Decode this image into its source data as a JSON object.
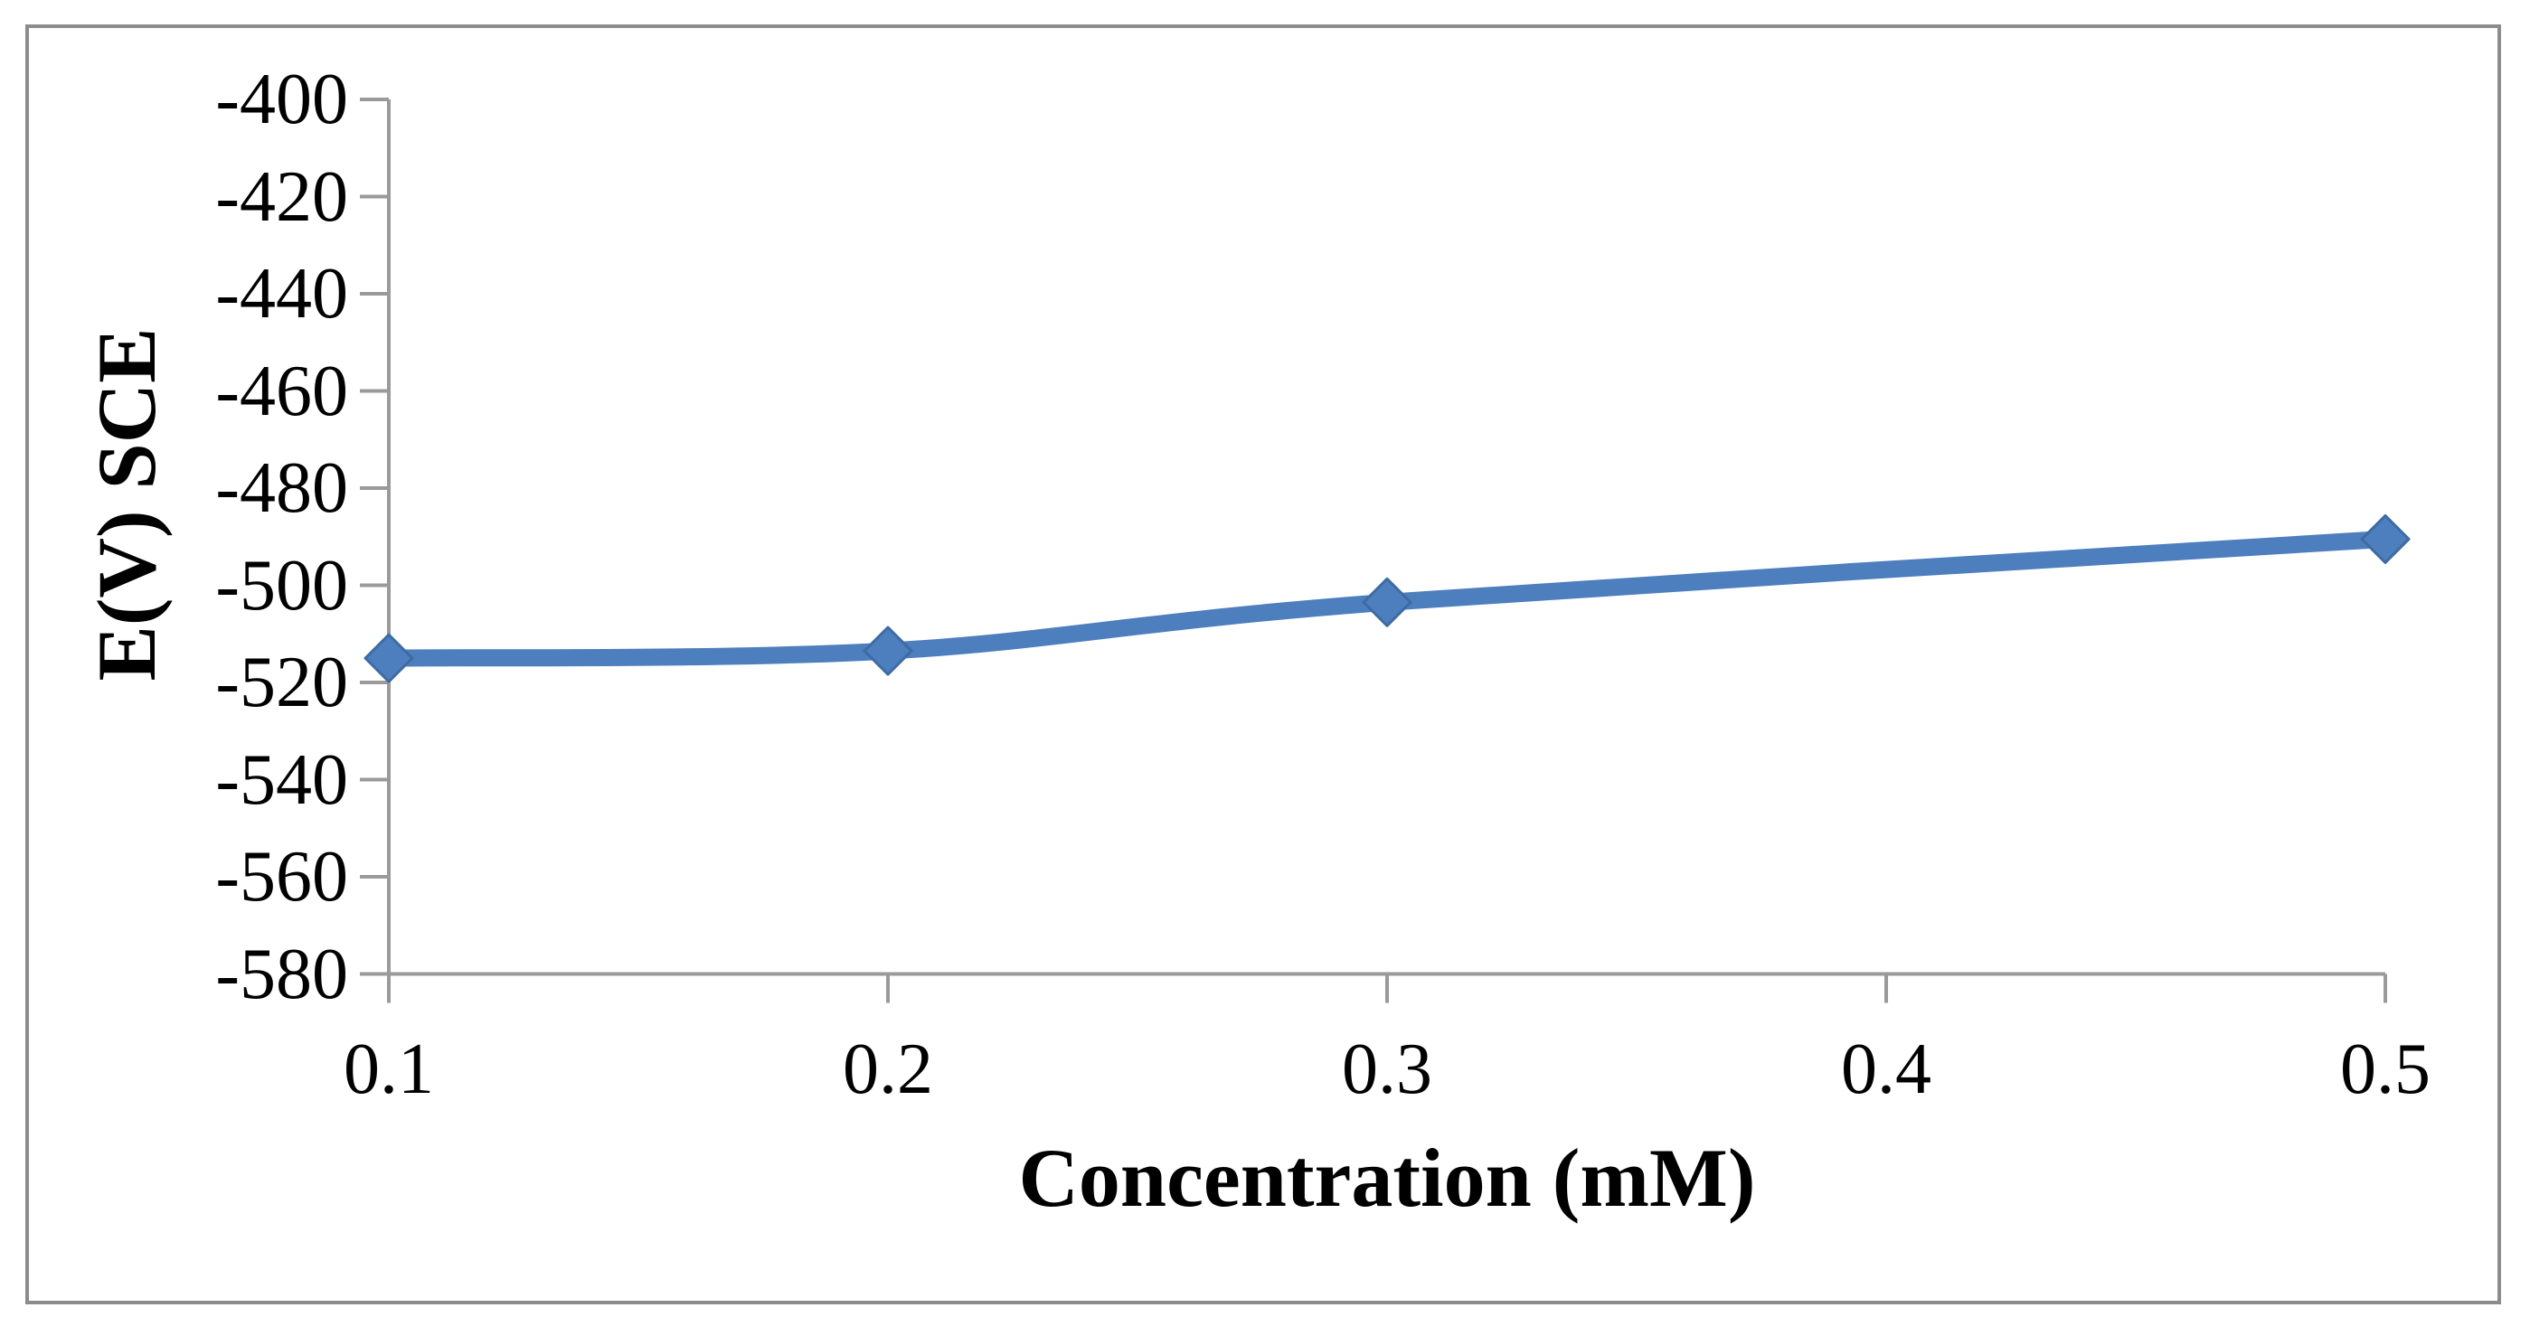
{
  "figure": {
    "background": "#ffffff",
    "border_color": "#8c8c8c"
  },
  "chart_data": {
    "type": "line",
    "title": "",
    "xlabel": "Concentration (mM)",
    "ylabel": "E(V) SCE",
    "x": [
      0.1,
      0.2,
      0.3,
      0.5
    ],
    "y": [
      -515,
      -513.5,
      -503.5,
      -490.5
    ],
    "xticks": [
      0.1,
      0.2,
      0.3,
      0.4,
      0.5
    ],
    "xtick_labels": [
      "0.1",
      "0.2",
      "0.3",
      "0.4",
      "0.5"
    ],
    "yticks": [
      -400,
      -420,
      -440,
      -460,
      -480,
      -500,
      -520,
      -540,
      -560,
      -580
    ],
    "ytick_labels": [
      "-400",
      "-420",
      "-440",
      "-460",
      "-480",
      "-500",
      "-520",
      "-540",
      "-560",
      "-580"
    ],
    "xlim": [
      0.1,
      0.5
    ],
    "ylim": [
      -580,
      -400
    ],
    "grid": false,
    "legend": false,
    "smooth": true,
    "marker": "diamond",
    "line_color": "#4d7ebd",
    "marker_color": "#4d7ebd",
    "marker_edge_color": "#3d6ba3",
    "axis_color": "#9a9a9a"
  }
}
